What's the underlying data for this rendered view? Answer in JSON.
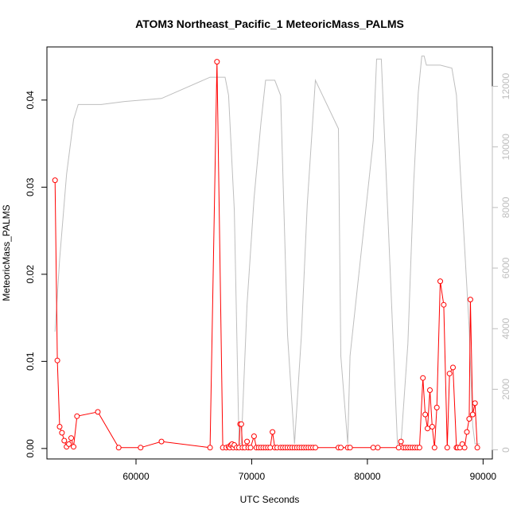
{
  "chart_data": {
    "type": "line",
    "title": "ATOM3 Northeast_Pacific_1 MeteoricMass_PALMS",
    "xlabel": "UTC Seconds",
    "ylabel": "MeteoricMass_PALMS",
    "xlim": [
      52300,
      90800
    ],
    "ylim": [
      -0.0012,
      0.0461
    ],
    "y2lim": [
      -300,
      13300
    ],
    "x_ticks": [
      60000,
      70000,
      80000,
      90000
    ],
    "x_tick_labels": [
      "60000",
      "70000",
      "80000",
      "90000"
    ],
    "y_ticks": [
      0.0,
      0.01,
      0.02,
      0.03,
      0.04
    ],
    "y_tick_labels": [
      "0.00",
      "0.01",
      "0.02",
      "0.03",
      "0.04"
    ],
    "y2_ticks": [
      0,
      2000,
      4000,
      6000,
      8000,
      10000,
      12000
    ],
    "y2_tick_labels": [
      "0",
      "2000",
      "4000",
      "6000",
      "8000",
      "10000",
      "12000"
    ],
    "grid": false,
    "colors": {
      "primary": "#ff0000",
      "secondary": "#bebebe",
      "axis": "#000000"
    },
    "series": [
      {
        "axis": "left",
        "style": "line+open-circles",
        "color": "#ff0000",
        "x": [
          53000,
          53200,
          53400,
          53600,
          53800,
          54000,
          54200,
          54400,
          54600,
          54900,
          56700,
          58500,
          60400,
          62200,
          66400,
          67000,
          67500,
          67800,
          68000,
          68100,
          68200,
          68300,
          68400,
          68500,
          68700,
          68900,
          69000,
          69100,
          69200,
          69400,
          69600,
          69700,
          69900,
          70200,
          70400,
          70600,
          70800,
          71000,
          71200,
          71400,
          71600,
          71800,
          72000,
          72200,
          72500,
          72700,
          72900,
          73100,
          73300,
          73500,
          73700,
          73900,
          74100,
          74300,
          74500,
          74700,
          74900,
          75100,
          75300,
          75500,
          77500,
          77700,
          78300,
          78500,
          80500,
          80900,
          82700,
          82900,
          83100,
          83300,
          83500,
          83700,
          83900,
          84100,
          84300,
          84500,
          84800,
          85000,
          85200,
          85400,
          85600,
          85800,
          86000,
          86300,
          86600,
          86900,
          87100,
          87400,
          87700,
          87800,
          88000,
          88200,
          88400,
          88600,
          88800,
          88900,
          89100,
          89300,
          89500
        ],
        "y": [
          0.0308,
          0.0101,
          0.0025,
          0.0018,
          0.0009,
          0.0002,
          0.0005,
          0.0012,
          0.0002,
          0.0037,
          0.0042,
          0.0001,
          0.0001,
          0.0008,
          0.0001,
          0.0444,
          0.0001,
          0.0001,
          0.0002,
          0.0001,
          0.0004,
          0.0005,
          0.0001,
          0.0004,
          0.0001,
          0.0001,
          0.0028,
          0.0028,
          0.0001,
          0.0001,
          0.0008,
          0.0001,
          0.0001,
          0.0014,
          0.0001,
          0.0001,
          0.0001,
          0.0001,
          0.0001,
          0.0001,
          0.0001,
          0.0019,
          0.0001,
          0.0001,
          0.0001,
          0.0001,
          0.0001,
          0.0001,
          0.0001,
          0.0001,
          0.0001,
          0.0001,
          0.0001,
          0.0001,
          0.0001,
          0.0001,
          0.0001,
          0.0001,
          0.0001,
          0.0001,
          0.0001,
          0.0001,
          0.0001,
          0.0001,
          0.0001,
          0.0001,
          0.0001,
          0.0008,
          0.0001,
          0.0001,
          0.0001,
          0.0001,
          0.0001,
          0.0001,
          0.0001,
          0.0001,
          0.0081,
          0.0039,
          0.0023,
          0.0067,
          0.0025,
          0.0001,
          0.0047,
          0.0192,
          0.0165,
          0.0001,
          0.0086,
          0.0093,
          0.0001,
          0.0001,
          0.0001,
          0.0005,
          0.0001,
          0.0019,
          0.0034,
          0.0171,
          0.0039,
          0.0052,
          0.0001
        ]
      },
      {
        "axis": "right",
        "style": "line",
        "color": "#bebebe",
        "x": [
          53000,
          53400,
          54000,
          54600,
          55000,
          57000,
          59000,
          62200,
          66400,
          66800,
          67700,
          68000,
          68500,
          68900,
          69100,
          69600,
          70200,
          70800,
          71200,
          71500,
          72000,
          72500,
          73100,
          73700,
          74300,
          74800,
          75500,
          77500,
          77700,
          78300,
          78500,
          80500,
          80800,
          80900,
          81200,
          82600,
          82900,
          83500,
          84000,
          84400,
          84700,
          84900,
          85100,
          86300,
          87300,
          87700,
          88000,
          88800,
          89100,
          89300,
          89500,
          89700
        ],
        "y": [
          3900,
          6300,
          9100,
          10900,
          11400,
          11400,
          11500,
          11600,
          12300,
          12300,
          12300,
          11700,
          7900,
          200,
          200,
          4800,
          8300,
          10800,
          12200,
          12200,
          12200,
          11700,
          3800,
          200,
          3800,
          8100,
          12200,
          10600,
          3100,
          200,
          3100,
          10200,
          12900,
          12900,
          12900,
          200,
          200,
          3500,
          8800,
          11800,
          13000,
          13000,
          12700,
          12700,
          12600,
          11700,
          9400,
          4000,
          800,
          200,
          200,
          200
        ]
      }
    ]
  }
}
